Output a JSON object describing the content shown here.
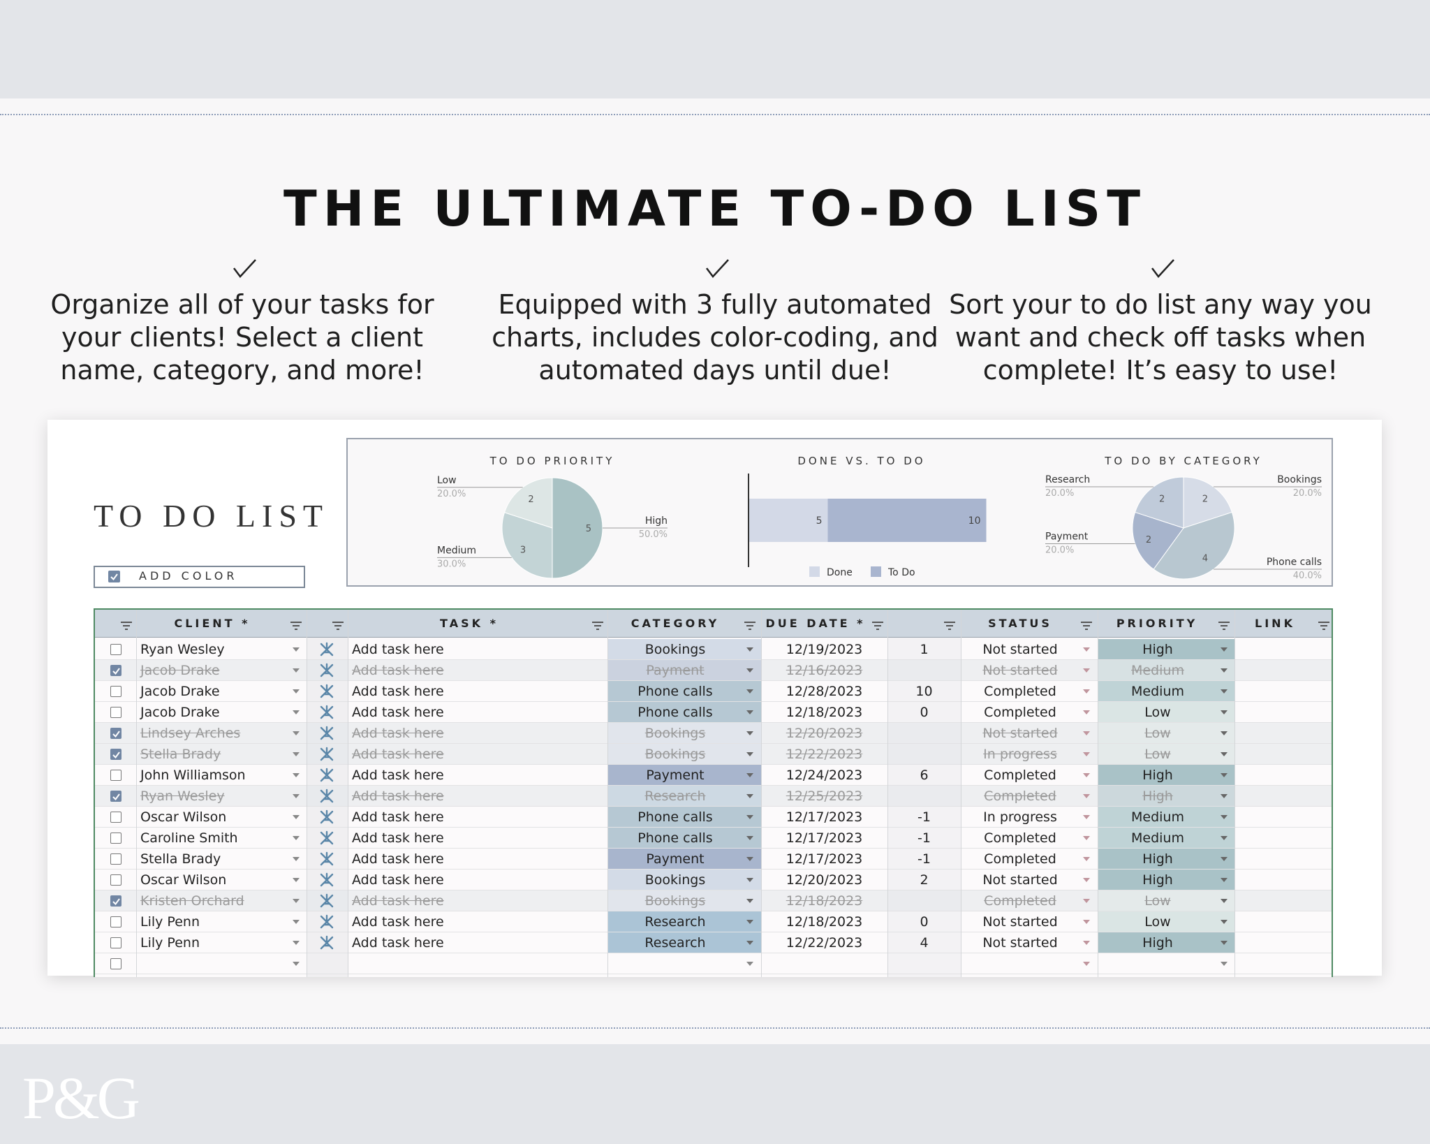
{
  "header": {
    "title": "THE ULTIMATE TO-DO LIST"
  },
  "features": [
    [
      "Organize all of your tasks for",
      "your clients! Select a client",
      "name, category, and more!"
    ],
    [
      "Equipped with 3 fully automated",
      "charts, includes color-coding, and",
      "automated days until due!"
    ],
    [
      "Sort your to do list any way you",
      "want and check off tasks when",
      "complete! It’s easy to use!"
    ]
  ],
  "sheet": {
    "title": "TO DO LIST",
    "add_color": "ADD COLOR",
    "add_color_checked": true,
    "headers": {
      "client": "CLIENT *",
      "task": "TASK *",
      "category": "CATEGORY",
      "due": "DUE DATE *",
      "status": "STATUS",
      "priority": "PRIORITY",
      "link": "LINK"
    },
    "category_colors": {
      "Bookings": "#d3dbe7",
      "Payment": "#a8b5cd",
      "Phone calls": "#b6c8d3",
      "Research": "#abc4d6"
    },
    "priority_colors": {
      "High": "#a9c2c7",
      "Medium": "#bfd3d6",
      "Low": "#dae5e4"
    },
    "rows": [
      {
        "done": false,
        "client": "Ryan Wesley",
        "task": "Add task here",
        "category": "Bookings",
        "due": "12/19/2023",
        "days": 1,
        "status": "Not started",
        "priority": "High"
      },
      {
        "done": true,
        "client": "Jacob Drake",
        "task": "Add task here",
        "category": "Payment",
        "due": "12/16/2023",
        "days": null,
        "status": "Not started",
        "priority": "Medium"
      },
      {
        "done": false,
        "client": "Jacob Drake",
        "task": "Add task here",
        "category": "Phone calls",
        "due": "12/28/2023",
        "days": 10,
        "status": "Completed",
        "priority": "Medium"
      },
      {
        "done": false,
        "client": "Jacob Drake",
        "task": "Add task here",
        "category": "Phone calls",
        "due": "12/18/2023",
        "days": 0,
        "status": "Completed",
        "priority": "Low"
      },
      {
        "done": true,
        "client": "Lindsey Arches",
        "task": "Add task here",
        "category": "Bookings",
        "due": "12/20/2023",
        "days": null,
        "status": "Not started",
        "priority": "Low"
      },
      {
        "done": true,
        "client": "Stella Brady",
        "task": "Add task here",
        "category": "Bookings",
        "due": "12/22/2023",
        "days": null,
        "status": "In progress",
        "priority": "Low"
      },
      {
        "done": false,
        "client": "John Williamson",
        "task": "Add task here",
        "category": "Payment",
        "due": "12/24/2023",
        "days": 6,
        "status": "Completed",
        "priority": "High"
      },
      {
        "done": true,
        "client": "Ryan Wesley",
        "task": "Add task here",
        "category": "Research",
        "due": "12/25/2023",
        "days": null,
        "status": "Completed",
        "priority": "High"
      },
      {
        "done": false,
        "client": "Oscar Wilson",
        "task": "Add task here",
        "category": "Phone calls",
        "due": "12/17/2023",
        "days": -1,
        "status": "In progress",
        "priority": "Medium"
      },
      {
        "done": false,
        "client": "Caroline Smith",
        "task": "Add task here",
        "category": "Phone calls",
        "due": "12/17/2023",
        "days": -1,
        "status": "Completed",
        "priority": "Medium"
      },
      {
        "done": false,
        "client": "Stella Brady",
        "task": "Add task here",
        "category": "Payment",
        "due": "12/17/2023",
        "days": -1,
        "status": "Completed",
        "priority": "High"
      },
      {
        "done": false,
        "client": "Oscar Wilson",
        "task": "Add task here",
        "category": "Bookings",
        "due": "12/20/2023",
        "days": 2,
        "status": "Not started",
        "priority": "High"
      },
      {
        "done": true,
        "client": "Kristen Orchard",
        "task": "Add task here",
        "category": "Bookings",
        "due": "12/18/2023",
        "days": null,
        "status": "Completed",
        "priority": "Low"
      },
      {
        "done": false,
        "client": "Lily Penn",
        "task": "Add task here",
        "category": "Research",
        "due": "12/18/2023",
        "days": 0,
        "status": "Not started",
        "priority": "Low"
      },
      {
        "done": false,
        "client": "Lily Penn",
        "task": "Add task here",
        "category": "Research",
        "due": "12/22/2023",
        "days": 4,
        "status": "Not started",
        "priority": "High"
      }
    ]
  },
  "chart_data": [
    {
      "type": "pie",
      "title": "TO DO PRIORITY",
      "categories": [
        "High",
        "Medium",
        "Low"
      ],
      "values": [
        5,
        3,
        2
      ],
      "percent_labels": [
        "50.0%",
        "30.0%",
        "20.0%"
      ],
      "colors": [
        "#a9c2c4",
        "#c3d4d6",
        "#dde6e5"
      ]
    },
    {
      "type": "bar",
      "orientation": "horizontal",
      "stacked": true,
      "title": "DONE VS. TO DO",
      "series": [
        {
          "name": "Done",
          "color": "#d3d9e7",
          "values": [
            5
          ]
        },
        {
          "name": "To Do",
          "color": "#a9b5cf",
          "values": [
            10
          ]
        }
      ]
    },
    {
      "type": "pie",
      "title": "TO DO BY CATEGORY",
      "categories": [
        "Bookings",
        "Phone calls",
        "Payment",
        "Research"
      ],
      "values": [
        2,
        4,
        2,
        2
      ],
      "percent_labels": [
        "20.0%",
        "40.0%",
        "20.0%",
        "20.0%"
      ],
      "colors": [
        "#d6dce7",
        "#b8c7d0",
        "#a7b4cc",
        "#c0cbda"
      ]
    }
  ],
  "brand": "P&G"
}
